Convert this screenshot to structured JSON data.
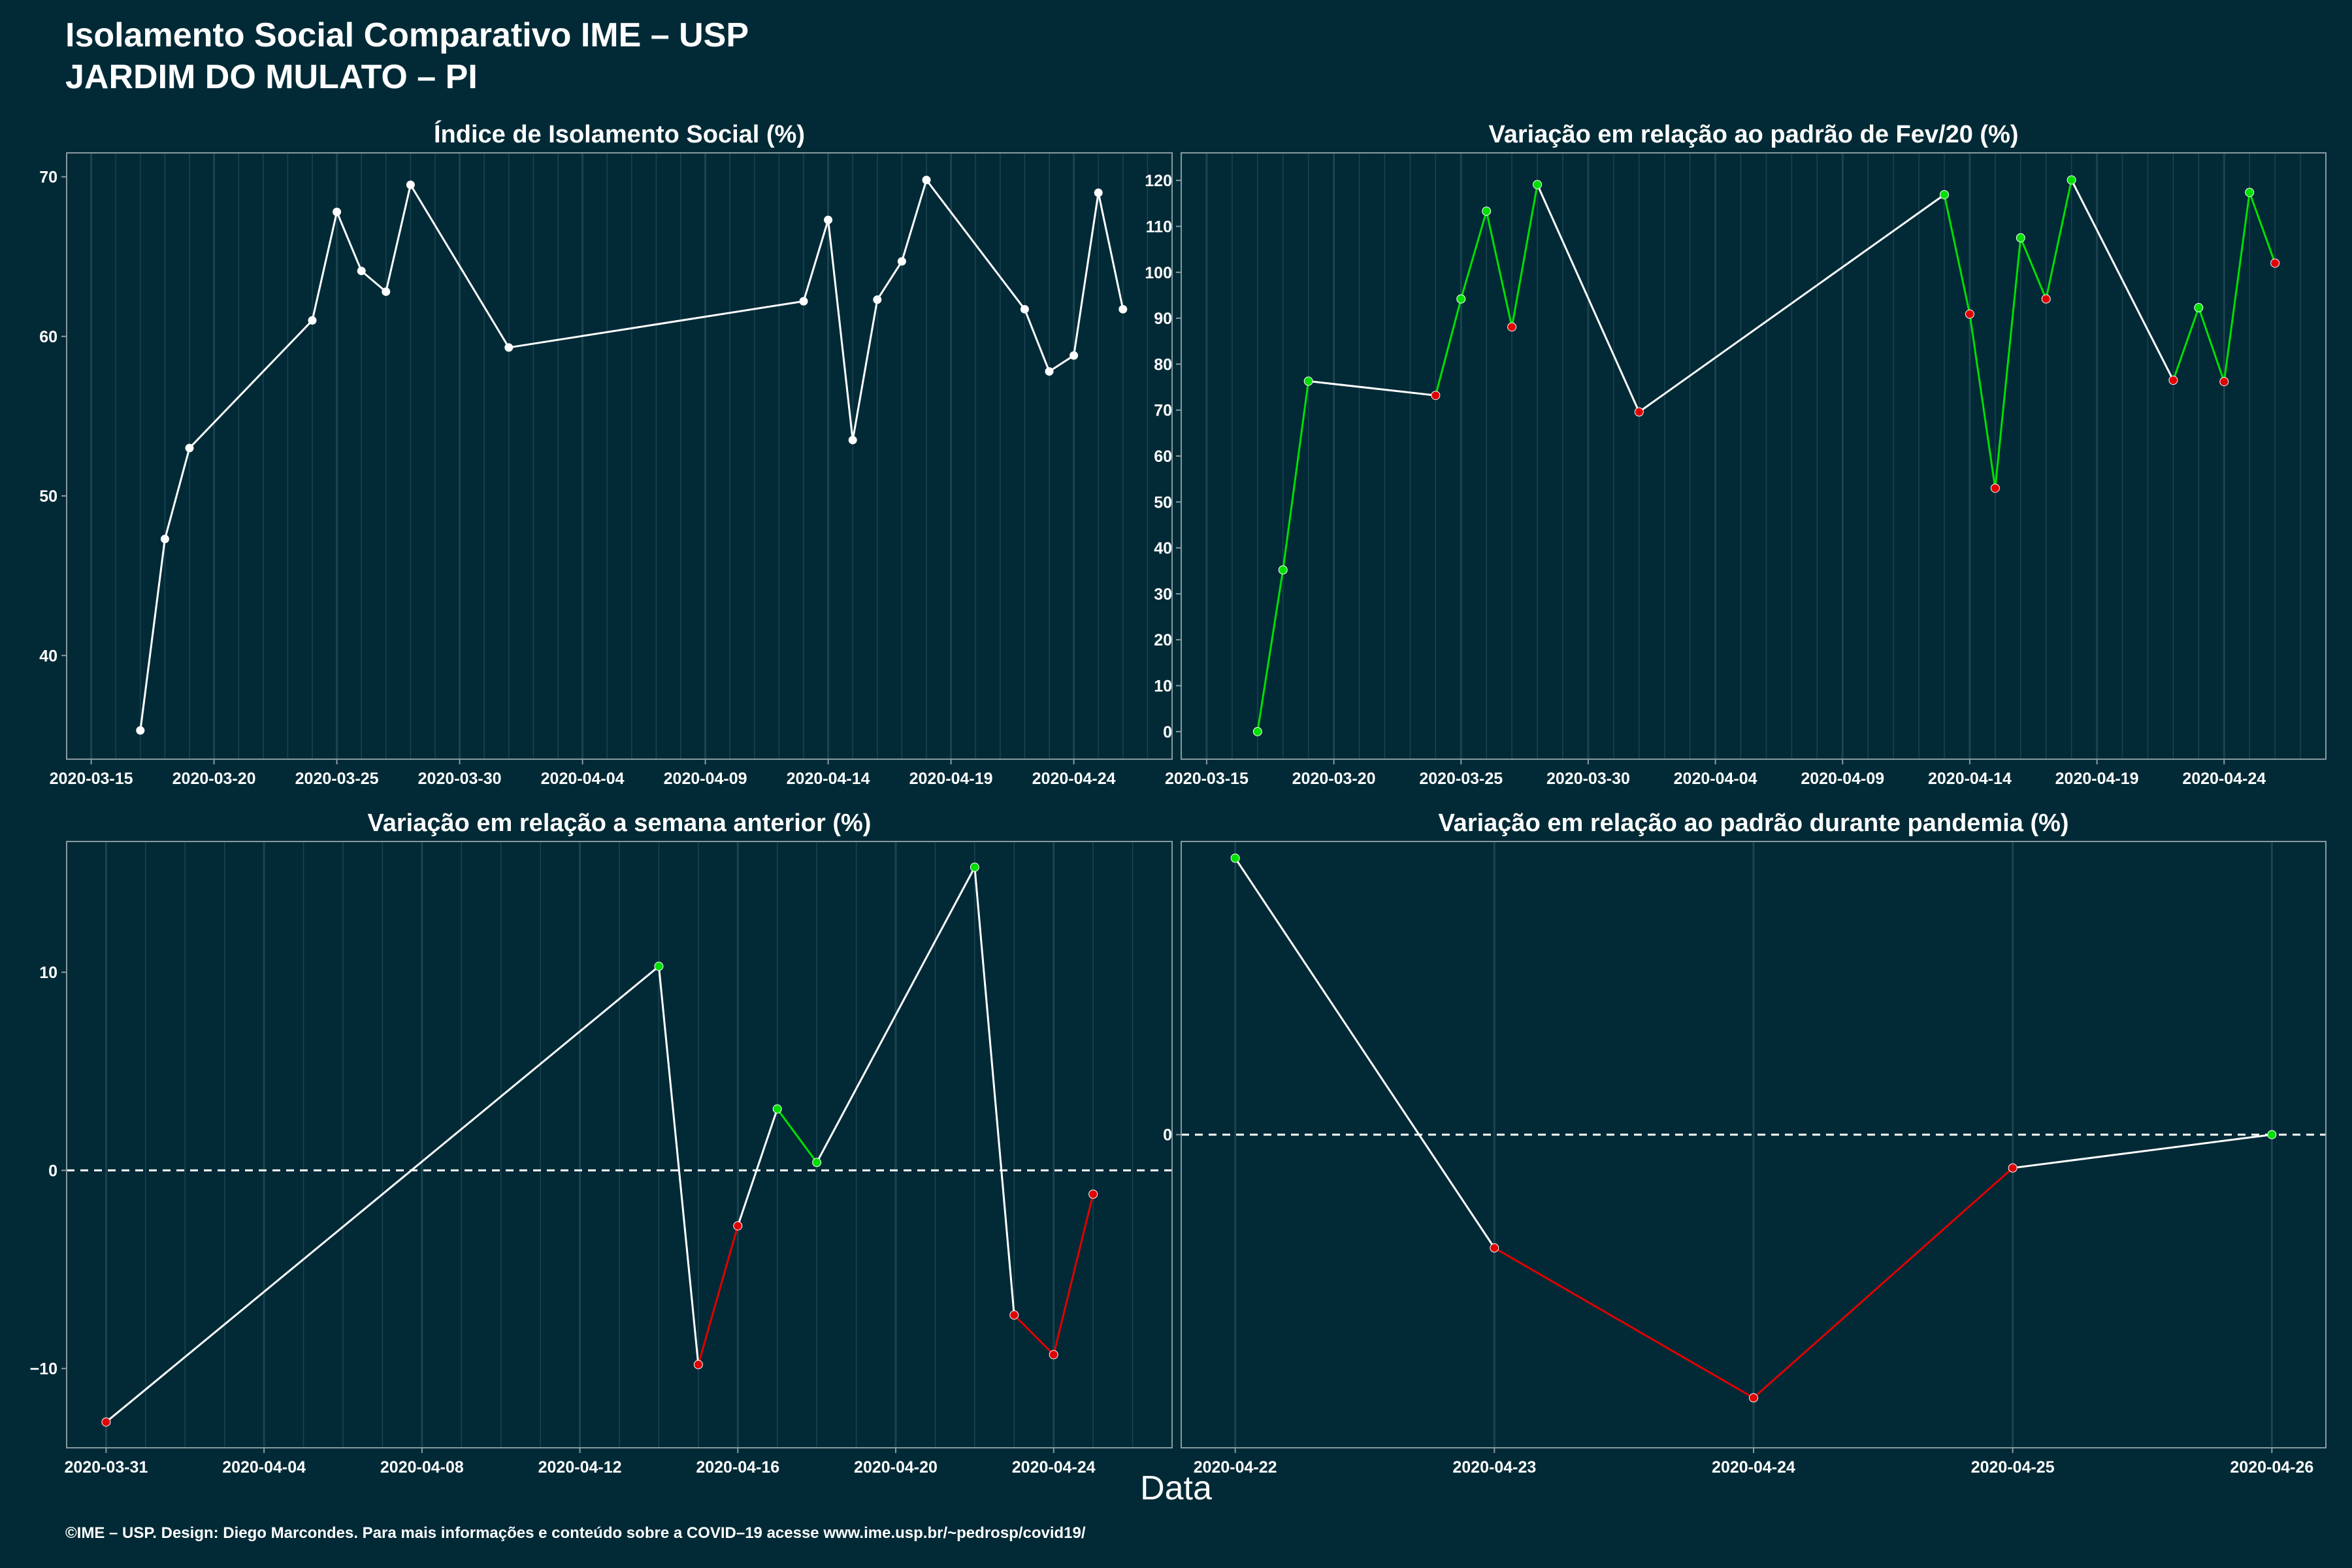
{
  "header": {
    "title_line1": "Isolamento Social Comparativo IME – USP",
    "title_line2": "JARDIM DO MULATO – PI"
  },
  "xlabel": "Data",
  "footer": "©IME – USP. Design: Diego Marcondes. Para mais informações e conteúdo sobre a COVID–19 acesse www.ime.usp.br/~pedrosp/covid19/",
  "colors": {
    "background": "#012a36",
    "line": "#ffffff",
    "up": "#00e000",
    "down": "#e00000",
    "grid": "#1c4450"
  },
  "chart_data": [
    {
      "type": "line",
      "title": "Índice de Isolamento Social (%)",
      "xlabel": "",
      "ylabel": "",
      "xlim": [
        "2020-03-14",
        "2020-04-28"
      ],
      "ylim": [
        33.5,
        71.5
      ],
      "xticks": [
        "2020-03-15",
        "2020-03-20",
        "2020-03-25",
        "2020-03-30",
        "2020-04-04",
        "2020-04-09",
        "2020-04-14",
        "2020-04-19",
        "2020-04-24"
      ],
      "yticks": [
        40,
        50,
        60,
        70
      ],
      "grid": true,
      "series": [
        {
          "color_rule": "white",
          "x": [
            "2020-03-17",
            "2020-03-18",
            "2020-03-19",
            "2020-03-24",
            "2020-03-25",
            "2020-03-26",
            "2020-03-27",
            "2020-03-28",
            "2020-04-01",
            "2020-04-13",
            "2020-04-14",
            "2020-04-15",
            "2020-04-16",
            "2020-04-17",
            "2020-04-18",
            "2020-04-22",
            "2020-04-23",
            "2020-04-24",
            "2020-04-25",
            "2020-04-26"
          ],
          "y": [
            35.3,
            47.3,
            53.0,
            61.0,
            67.8,
            64.1,
            62.8,
            69.5,
            59.3,
            62.2,
            67.3,
            53.5,
            62.3,
            64.7,
            69.8,
            61.7,
            57.8,
            58.8,
            69.0,
            61.7
          ]
        }
      ]
    },
    {
      "type": "line",
      "title": "Variação em relação ao padrão de Fev/20 (%)",
      "xlabel": "",
      "ylabel": "",
      "xlim": [
        "2020-03-14",
        "2020-04-28"
      ],
      "ylim": [
        -6,
        126
      ],
      "xticks": [
        "2020-03-15",
        "2020-03-20",
        "2020-03-25",
        "2020-03-30",
        "2020-04-04",
        "2020-04-09",
        "2020-04-14",
        "2020-04-19",
        "2020-04-24"
      ],
      "yticks": [
        0,
        10,
        20,
        30,
        40,
        50,
        60,
        70,
        80,
        90,
        100,
        110,
        120
      ],
      "grid": true,
      "series": [
        {
          "color_rule": "change",
          "x": [
            "2020-03-17",
            "2020-03-18",
            "2020-03-19",
            "2020-03-24",
            "2020-03-25",
            "2020-03-26",
            "2020-03-27",
            "2020-03-28",
            "2020-04-01",
            "2020-04-13",
            "2020-04-14",
            "2020-04-15",
            "2020-04-16",
            "2020-04-17",
            "2020-04-18",
            "2020-04-22",
            "2020-04-23",
            "2020-04-24",
            "2020-04-25",
            "2020-04-26"
          ],
          "y": [
            0,
            35.2,
            76.3,
            73.2,
            94.2,
            113.3,
            88.1,
            119.1,
            69.6,
            116.9,
            90.9,
            53.0,
            107.5,
            94.2,
            120.1,
            76.5,
            92.3,
            76.2,
            117.4,
            102.0
          ]
        }
      ]
    },
    {
      "type": "line",
      "title": "Variação em relação a semana anterior (%)",
      "xlabel": "",
      "ylabel": "",
      "xlim": [
        "2020-03-30",
        "2020-04-27"
      ],
      "ylim": [
        -14,
        16.6
      ],
      "xticks": [
        "2020-03-31",
        "2020-04-04",
        "2020-04-08",
        "2020-04-12",
        "2020-04-16",
        "2020-04-20",
        "2020-04-24"
      ],
      "yticks": [
        -10,
        0,
        10
      ],
      "zero_line": true,
      "grid": true,
      "series": [
        {
          "color_rule": "sign",
          "x": [
            "2020-03-31",
            "2020-04-14",
            "2020-04-15",
            "2020-04-16",
            "2020-04-17",
            "2020-04-18",
            "2020-04-22",
            "2020-04-23",
            "2020-04-24",
            "2020-04-25"
          ],
          "y": [
            -12.7,
            10.3,
            -9.8,
            -2.8,
            3.1,
            0.4,
            15.3,
            -7.3,
            -9.3,
            -1.2
          ]
        }
      ]
    },
    {
      "type": "line",
      "title": "Variação em relação ao padrão durante pandemia (%)",
      "xlabel": "",
      "ylabel": "",
      "xlim": [
        "2020-04-21T19:00",
        "2020-04-26T05:00"
      ],
      "ylim": [
        -9.4,
        8.8
      ],
      "xticks": [
        "2020-04-22",
        "2020-04-23",
        "2020-04-24",
        "2020-04-25",
        "2020-04-26"
      ],
      "yticks": [
        0
      ],
      "zero_line": true,
      "grid": true,
      "series": [
        {
          "color_rule": "sign",
          "x": [
            "2020-04-22",
            "2020-04-23",
            "2020-04-24",
            "2020-04-25",
            "2020-04-26"
          ],
          "y": [
            8.3,
            -3.4,
            -7.9,
            -1.0,
            0.0
          ]
        }
      ]
    }
  ]
}
